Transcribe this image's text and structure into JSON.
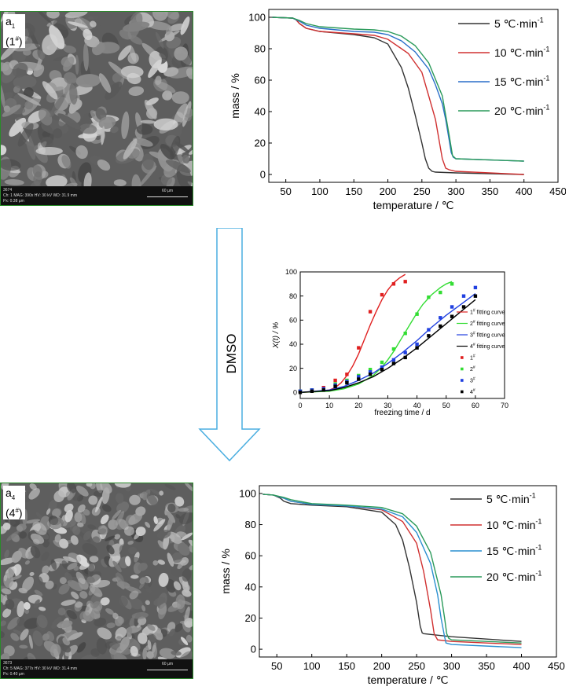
{
  "sem_images": [
    {
      "label_main": "a",
      "label_sub": "1",
      "label_sample": "(1",
      "label_sample_sup": "#",
      "label_close": ")",
      "info_line1": "3674",
      "info_line2": "Ch: 1   MAG: 390x   HV: 30 kV   WD: 31.9 mm",
      "info_line3": "Px: 0.38 µm",
      "scale_label": "60 µm"
    },
    {
      "label_main": "a",
      "label_sub": "4",
      "label_sample": "(4",
      "label_sample_sup": "#",
      "label_close": ")",
      "info_line1": "3673",
      "info_line2": "Ch: 5   MAG: 377x   HV: 30 kV   WD: 31.4 mm",
      "info_line3": "Px: 0.40 µm",
      "scale_label": "60 µm"
    }
  ],
  "arrow_label": "DMSO",
  "chart_data": [
    {
      "type": "line",
      "id": "tga-top",
      "xlabel": "temperature / ℃",
      "ylabel": "mass / %",
      "xlim": [
        25,
        450
      ],
      "ylim": [
        -5,
        105
      ],
      "xticks": [
        50,
        100,
        150,
        200,
        250,
        300,
        350,
        400,
        450
      ],
      "yticks": [
        0,
        20,
        40,
        60,
        80,
        100
      ],
      "legend_position": "right",
      "series": [
        {
          "name": "5 ℃·min",
          "sup": "-1",
          "color": "#333333",
          "x": [
            30,
            60,
            65,
            70,
            80,
            100,
            150,
            180,
            200,
            220,
            230,
            240,
            250,
            255,
            260,
            265,
            270,
            300,
            400
          ],
          "y": [
            100,
            99.5,
            98.5,
            96,
            93,
            91,
            89,
            87,
            83,
            68,
            55,
            38,
            20,
            10,
            4,
            2,
            1.5,
            1,
            0
          ]
        },
        {
          "name": "10 ℃·min",
          "sup": "-1",
          "color": "#d03030",
          "x": [
            30,
            60,
            65,
            70,
            80,
            100,
            150,
            180,
            200,
            230,
            250,
            260,
            270,
            280,
            285,
            290,
            300,
            400
          ],
          "y": [
            100,
            99.5,
            98.5,
            96,
            93,
            91,
            89.5,
            88.5,
            86,
            77,
            65,
            50,
            35,
            10,
            4,
            3,
            2,
            0
          ]
        },
        {
          "name": "15 ℃·min",
          "sup": "-1",
          "color": "#2a6fc9",
          "x": [
            30,
            60,
            70,
            80,
            100,
            150,
            180,
            200,
            220,
            240,
            260,
            270,
            280,
            285,
            290,
            293,
            296,
            300,
            400
          ],
          "y": [
            100,
            99.5,
            97.5,
            95,
            93,
            91,
            90.5,
            89,
            85,
            78,
            67,
            57,
            45,
            35,
            22,
            14,
            11,
            10,
            8.5
          ]
        },
        {
          "name": "20 ℃·min",
          "sup": "-1",
          "color": "#2a9a5a",
          "x": [
            30,
            60,
            70,
            80,
            100,
            150,
            180,
            200,
            220,
            240,
            260,
            280,
            290,
            295,
            300,
            400
          ],
          "y": [
            100,
            99.5,
            98,
            96,
            94,
            92.5,
            92,
            91,
            88,
            82,
            71,
            50,
            25,
            12,
            10,
            8.5
          ]
        }
      ]
    },
    {
      "type": "line",
      "id": "kinetics",
      "xlabel": "freezing time / d",
      "ylabel": "X(t) / %",
      "xlim": [
        0,
        70
      ],
      "ylim": [
        -5,
        100
      ],
      "xticks": [
        0,
        10,
        20,
        30,
        40,
        50,
        60,
        70
      ],
      "yticks": [
        0,
        20,
        40,
        60,
        80,
        100
      ],
      "legend_position": "right",
      "fit_series": [
        {
          "name": "1",
          "sup": "#",
          "suffix": " fitting curve",
          "color": "#e02020",
          "x": [
            0,
            5,
            10,
            12,
            14,
            16,
            18,
            20,
            22,
            24,
            26,
            28,
            30,
            32,
            34,
            36
          ],
          "y": [
            0,
            0.5,
            2,
            4,
            8,
            14,
            22,
            32,
            44,
            56,
            67,
            77,
            85,
            91,
            95,
            98
          ]
        },
        {
          "name": "2",
          "sup": "#",
          "suffix": " fitting curve",
          "color": "#33dd33",
          "x": [
            0,
            10,
            15,
            20,
            25,
            28,
            30,
            32,
            35,
            38,
            40,
            42,
            45,
            48,
            50,
            52
          ],
          "y": [
            0,
            1,
            3,
            7,
            14,
            21,
            27,
            34,
            46,
            58,
            66,
            73,
            81,
            87,
            90,
            92
          ]
        },
        {
          "name": "3",
          "sup": "#",
          "suffix": " fitting curve",
          "color": "#2040e0",
          "x": [
            0,
            10,
            15,
            20,
            25,
            30,
            35,
            40,
            45,
            50,
            55,
            60
          ],
          "y": [
            0,
            2,
            5,
            10,
            16,
            24,
            33,
            43,
            54,
            64,
            73,
            82
          ]
        },
        {
          "name": "4",
          "sup": "#",
          "suffix": " fitting curve",
          "color": "#000000",
          "x": [
            0,
            10,
            15,
            20,
            25,
            30,
            35,
            40,
            45,
            50,
            55,
            60
          ],
          "y": [
            0,
            1.5,
            4,
            8,
            13,
            20,
            28,
            37,
            47,
            57,
            67,
            77
          ]
        }
      ],
      "point_series": [
        {
          "name": "1",
          "sup": "#",
          "color": "#e02020",
          "x": [
            0,
            4,
            8,
            12,
            16,
            20,
            24,
            28,
            32,
            36
          ],
          "y": [
            1,
            2,
            4,
            10,
            15,
            37,
            67,
            81,
            90,
            92
          ]
        },
        {
          "name": "2",
          "sup": "#",
          "color": "#33dd33",
          "x": [
            0,
            4,
            8,
            12,
            16,
            20,
            24,
            28,
            32,
            36,
            40,
            44,
            48,
            52
          ],
          "y": [
            1,
            2,
            3,
            7,
            10,
            14,
            19,
            25,
            36,
            49,
            65,
            79,
            83,
            90
          ]
        },
        {
          "name": "3",
          "sup": "#",
          "color": "#2040e0",
          "x": [
            0,
            4,
            8,
            12,
            16,
            20,
            24,
            28,
            32,
            36,
            40,
            44,
            48,
            52,
            56,
            60
          ],
          "y": [
            1,
            2,
            3,
            6,
            9,
            13,
            17,
            21,
            27,
            33,
            40,
            52,
            62,
            71,
            80,
            87
          ]
        },
        {
          "name": "4",
          "sup": "#",
          "color": "#000000",
          "x": [
            0,
            4,
            8,
            12,
            16,
            20,
            24,
            28,
            32,
            36,
            40,
            44,
            48,
            52,
            56,
            60
          ],
          "y": [
            0,
            1,
            2,
            5,
            8,
            11,
            15,
            19,
            24,
            29,
            37,
            47,
            55,
            63,
            71,
            80
          ]
        }
      ]
    },
    {
      "type": "line",
      "id": "tga-bottom",
      "xlabel": "temperature / ℃",
      "ylabel": "mass / %",
      "xlim": [
        25,
        450
      ],
      "ylim": [
        -5,
        105
      ],
      "xticks": [
        50,
        100,
        150,
        200,
        250,
        300,
        350,
        400,
        450
      ],
      "yticks": [
        0,
        20,
        40,
        60,
        80,
        100
      ],
      "legend_position": "right",
      "series": [
        {
          "name": "5 ℃·min",
          "sup": "-1",
          "color": "#333333",
          "x": [
            30,
            45,
            55,
            60,
            70,
            100,
            150,
            200,
            220,
            230,
            240,
            250,
            255,
            258,
            260,
            300,
            400
          ],
          "y": [
            99.5,
            99,
            97,
            95,
            93.5,
            92.5,
            91.5,
            88,
            80,
            70,
            52,
            30,
            15,
            10.5,
            10,
            8,
            5
          ]
        },
        {
          "name": "10 ℃·min",
          "sup": "-1",
          "color": "#d03030",
          "x": [
            30,
            45,
            60,
            70,
            100,
            150,
            200,
            230,
            250,
            260,
            270,
            275,
            280,
            300,
            400
          ],
          "y": [
            99.5,
            99,
            97,
            95,
            93,
            92,
            89.5,
            82,
            68,
            50,
            25,
            10,
            6,
            5,
            3
          ]
        },
        {
          "name": "15 ℃·min",
          "sup": "-1",
          "color": "#2a8fd0",
          "x": [
            30,
            45,
            60,
            70,
            100,
            150,
            200,
            230,
            250,
            270,
            280,
            285,
            290,
            292,
            300,
            400
          ],
          "y": [
            99.5,
            99,
            97,
            95,
            93,
            92,
            90,
            85,
            75,
            55,
            35,
            20,
            8,
            4,
            3,
            1
          ]
        },
        {
          "name": "20 ℃·min",
          "sup": "-1",
          "color": "#2a9a5a",
          "x": [
            30,
            45,
            60,
            70,
            100,
            150,
            200,
            230,
            250,
            270,
            285,
            290,
            293,
            296,
            300,
            400
          ],
          "y": [
            99.5,
            99,
            97.5,
            96,
            93.5,
            92.5,
            91,
            87,
            79,
            62,
            35,
            20,
            10,
            7,
            6,
            4
          ]
        }
      ]
    }
  ]
}
